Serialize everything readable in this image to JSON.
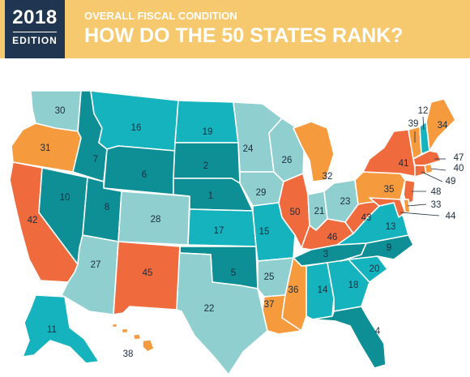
{
  "header": {
    "year": "2018",
    "edition": "EDITION",
    "kicker": "OVERALL FISCAL CONDITION",
    "headline": "HOW DO THE 50 STATES RANK?"
  },
  "colors": {
    "banner": "#f6c96e",
    "edition_block": "#1f3550",
    "rank_1_10": "#0d8f95",
    "rank_11_20": "#14b3bd",
    "rank_21_30": "#8fcfcf",
    "rank_31_40": "#f69a3e",
    "rank_41_50": "#ef6b3e"
  },
  "states": {
    "WA": "30",
    "OR": "31",
    "CA": "42",
    "ID": "7",
    "NV": "10",
    "MT": "16",
    "WY": "6",
    "UT": "8",
    "AZ": "27",
    "CO": "28",
    "NM": "45",
    "ND": "19",
    "SD": "2",
    "NE": "1",
    "KS": "17",
    "OK": "5",
    "TX": "22",
    "MN": "24",
    "IA": "29",
    "MO": "15",
    "AR": "25",
    "LA": "37",
    "WI": "26",
    "IL": "50",
    "MS": "36",
    "MI": "32",
    "IN": "21",
    "KY": "46",
    "TN": "3",
    "AL": "14",
    "OH": "23",
    "GA": "18",
    "FL": "4",
    "SC": "20",
    "NC": "9",
    "VA": "13",
    "WV": "43",
    "PA": "35",
    "NY": "41",
    "ME": "34",
    "VT": "39",
    "NH": "12",
    "MA": "47",
    "RI": "40",
    "CT": "49",
    "NJ": "48",
    "DE": "33",
    "MD": "44",
    "AK": "11",
    "HI": "38"
  }
}
